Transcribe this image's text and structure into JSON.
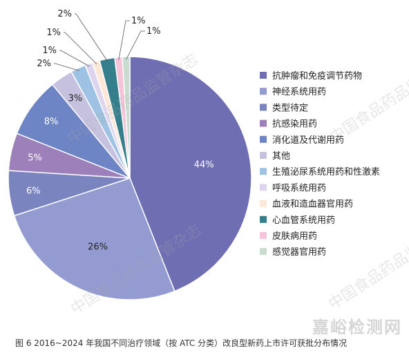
{
  "chart_data": {
    "type": "pie",
    "categories": [
      "抗肿瘤和免疫调节药物",
      "神经系统用药",
      "类型待定",
      "抗感染用药",
      "消化道及代谢用药",
      "其他",
      "生殖泌尿系统用药和性激素",
      "呼吸系统用药",
      "血液和造血器官用药",
      "心血管系统用药",
      "皮肤病用药",
      "感觉器官用药"
    ],
    "values": [
      44,
      26,
      6,
      5,
      8,
      3,
      2,
      1,
      1,
      2,
      1,
      1
    ],
    "labels": [
      "44%",
      "26%",
      "6%",
      "5%",
      "8%",
      "3%",
      "2%",
      "1%",
      "1%",
      "2%",
      "1%",
      "1%"
    ],
    "colors": [
      "#6f6eb3",
      "#939bd1",
      "#7a85bf",
      "#9d80b9",
      "#6d84c5",
      "#c7c1e0",
      "#9ec2e4",
      "#ddd4ef",
      "#fde8d8",
      "#357f8c",
      "#f6c4d9",
      "#c8dccf"
    ],
    "legend_position": "right",
    "title": "图 6   2016~2024 年我国不同治疗领域（按 ATC 分类）改良型新药上市许可获批分布情况"
  },
  "watermarks": [
    "中国食品药品监管杂志",
    "中国食品药品监管杂志",
    "中国食品药品监管杂志",
    "中国食品药品监管杂志"
  ],
  "site_mark": "嘉峪检测网"
}
